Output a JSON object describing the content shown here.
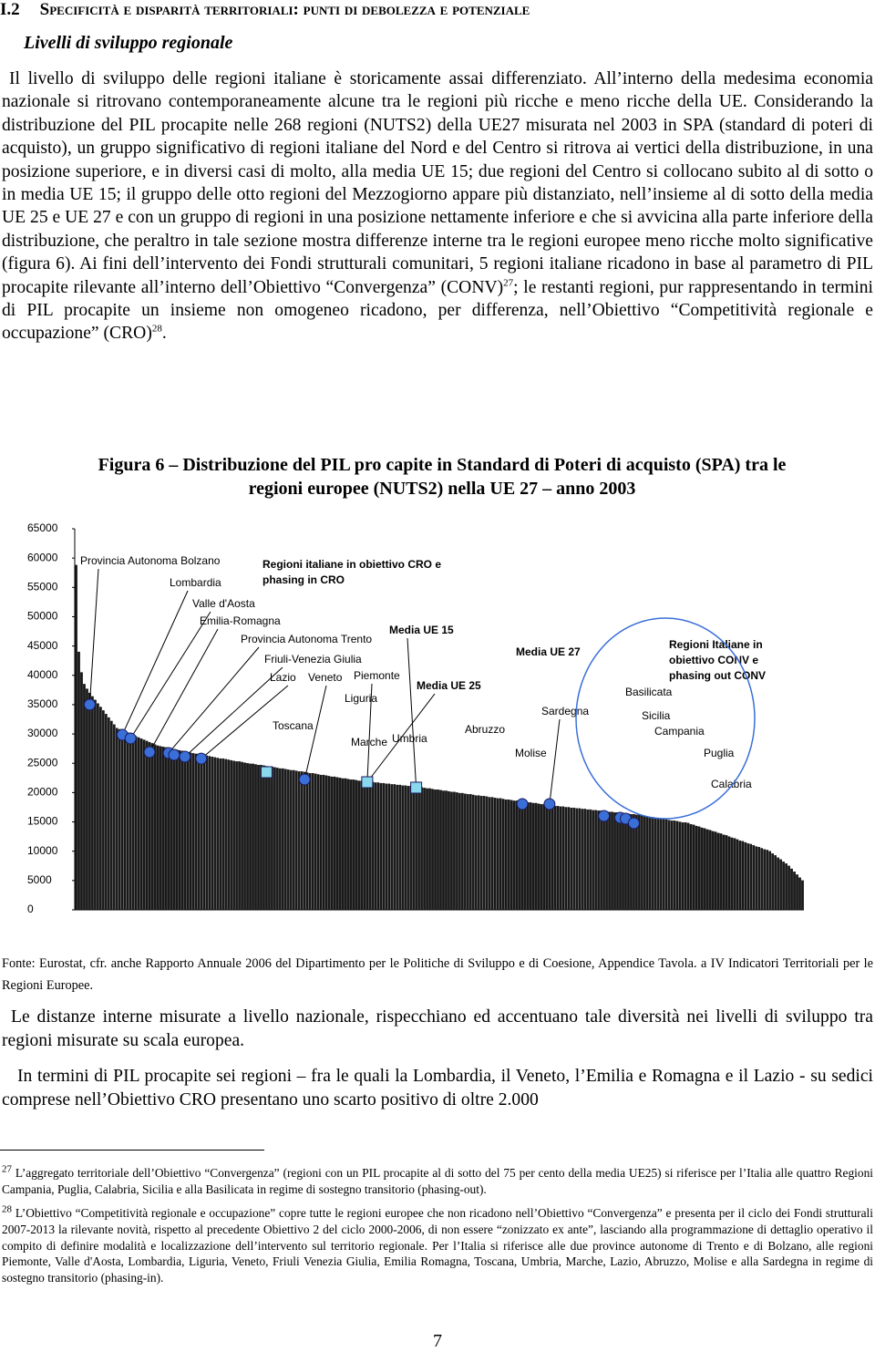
{
  "header": {
    "number": "I.2",
    "title": "Specificità e disparità territoriali: punti di debolezza e potenziale"
  },
  "subheading": "Livelli di sviluppo regionale",
  "paragraphs": [
    {
      "parts": [
        "Il livello di sviluppo delle regioni italiane è storicamente assai differenziato. All’interno della medesima economia nazionale si ritrovano contemporaneamente alcune tra le regioni più ricche e meno ricche della UE. Considerando la distribuzione del PIL procapite nelle 268 regioni (NUTS2) della UE27 misurata nel 2003 in SPA (standard di poteri di acquisto), un gruppo significativo di regioni italiane del Nord e del Centro si ritrova ai vertici della distribuzione, in una posizione superiore, e in diversi casi di molto, alla media UE 15; due regioni del Centro si collocano subito al di sotto o in media UE 15; il gruppo delle otto regioni del Mezzogiorno appare più distanziato, nell’insieme al di sotto della media UE 25 e UE 27 e con un gruppo di regioni in una posizione nettamente inferiore e che si avvicina alla parte inferiore della distribuzione, che peraltro in tale sezione mostra differenze interne tra le regioni europee meno ricche molto significative (figura 6). Ai fini dell’intervento dei Fondi strutturali comunitari, 5 regioni italiane ricadono in base al parametro di PIL procapite rilevante all’interno dell’Obiettivo “Convergenza” (CONV)",
        "27",
        "; le restanti regioni, pur rappresentando in termini di PIL procapite un insieme non omogeneo ricadono, per differenza, nell’Obiettivo “Competitività regionale e occupazione” (CRO)",
        "28",
        "."
      ]
    },
    {
      "parts": [
        "Le distanze interne misurate a livello nazionale, rispecchiano ed accentuano tale diversità nei livelli di sviluppo tra regioni misurate su scala europea."
      ]
    },
    {
      "parts": [
        "In termini di PIL procapite sei regioni – fra le quali la Lombardia, il Veneto, l’Emilia e Romagna e il Lazio - su sedici comprese nell’Obiettivo CRO presentano uno scarto positivo di oltre 2.000"
      ]
    }
  ],
  "chart_data": {
    "type": "bar",
    "title": "Figura 6 – Distribuzione del PIL pro capite in Standard di Poteri di acquisto (SPA) tra le regioni europee (NUTS2) nella UE 27 – anno 2003",
    "color": "#1a1a1a",
    "ylim": [
      0,
      65000
    ],
    "yticks": [
      0,
      5000,
      10000,
      15000,
      20000,
      25000,
      30000,
      35000,
      40000,
      45000,
      50000,
      55000,
      60000,
      65000
    ],
    "values": [
      58800,
      44000,
      40500,
      38500,
      37700,
      37000,
      36400,
      35800,
      35200,
      34600,
      34000,
      33400,
      32800,
      32200,
      31600,
      31000,
      30800,
      30600,
      30400,
      30200,
      30000,
      29800,
      29600,
      29400,
      29200,
      29000,
      28800,
      28600,
      28400,
      28200,
      28000,
      27900,
      27800,
      27700,
      27600,
      27500,
      27400,
      27300,
      27200,
      27100,
      27000,
      26900,
      26800,
      26700,
      26600,
      26600,
      26500,
      26400,
      26300,
      26200,
      26100,
      26000,
      25900,
      25800,
      25800,
      25700,
      25600,
      25500,
      25400,
      25300,
      25300,
      25200,
      25100,
      25000,
      24900,
      24900,
      24800,
      24700,
      24700,
      24600,
      24500,
      24400,
      24400,
      24300,
      24200,
      24100,
      24100,
      24000,
      23900,
      23800,
      23800,
      23700,
      23600,
      23600,
      23500,
      23400,
      23300,
      23300,
      23200,
      23100,
      23000,
      23000,
      22900,
      22800,
      22700,
      22700,
      22600,
      22500,
      22400,
      22400,
      22300,
      22200,
      22200,
      22100,
      22000,
      22000,
      21900,
      21900,
      21800,
      21800,
      21700,
      21700,
      21600,
      21600,
      21500,
      21500,
      21400,
      21400,
      21300,
      21300,
      21200,
      21200,
      21100,
      21100,
      21000,
      21000,
      20900,
      20900,
      20800,
      20700,
      20700,
      20600,
      20500,
      20500,
      20400,
      20300,
      20300,
      20200,
      20100,
      20100,
      20000,
      19900,
      19900,
      19800,
      19700,
      19700,
      19600,
      19500,
      19500,
      19400,
      19400,
      19300,
      19200,
      19200,
      19100,
      19000,
      19000,
      18900,
      18800,
      18800,
      18700,
      18600,
      18600,
      18500,
      18500,
      18400,
      18300,
      18300,
      18200,
      18200,
      18100,
      18000,
      18000,
      17900,
      17900,
      17800,
      17700,
      17700,
      17600,
      17600,
      17500,
      17500,
      17400,
      17400,
      17300,
      17300,
      17200,
      17200,
      17100,
      17100,
      17000,
      17000,
      16900,
      16900,
      16800,
      16800,
      16700,
      16700,
      16600,
      16600,
      16500,
      16500,
      16400,
      16400,
      16300,
      16300,
      16200,
      16200,
      16100,
      16000,
      15900,
      15800,
      15800,
      15700,
      15600,
      15500,
      15500,
      15400,
      15300,
      15200,
      15200,
      15100,
      15000,
      14900,
      14900,
      14800,
      14600,
      14500,
      14300,
      14200,
      14000,
      13900,
      13700,
      13600,
      13400,
      13300,
      13100,
      13000,
      12800,
      12700,
      12500,
      12300,
      12200,
      12000,
      11800,
      11700,
      11500,
      11300,
      11200,
      11000,
      10800,
      10700,
      10500,
      10300,
      10200,
      10000,
      9600,
      9300,
      8900,
      8600,
      8200,
      7900,
      7500,
      7000,
      6500,
      6000,
      5500,
      5000
    ],
    "markers": [
      {
        "x": 5,
        "value": 35000,
        "shape": "circle",
        "color": "#3a6fd8"
      },
      {
        "x": 17,
        "value": 29860,
        "shape": "circle",
        "color": "#3a6fd8"
      },
      {
        "x": 20,
        "value": 29230,
        "shape": "circle",
        "color": "#3a6fd8"
      },
      {
        "x": 27,
        "value": 26900,
        "shape": "circle",
        "color": "#3a6fd8"
      },
      {
        "x": 34,
        "value": 26750,
        "shape": "circle",
        "color": "#3a6fd8"
      },
      {
        "x": 36,
        "value": 26440,
        "shape": "circle",
        "color": "#3a6fd8"
      },
      {
        "x": 40,
        "value": 26120,
        "shape": "circle",
        "color": "#3a6fd8"
      },
      {
        "x": 46,
        "value": 25800,
        "shape": "circle",
        "color": "#3a6fd8"
      },
      {
        "x": 70,
        "value": 23480,
        "shape": "square",
        "color": "#8ad8ee"
      },
      {
        "x": 84,
        "value": 22240,
        "shape": "circle",
        "color": "#3a6fd8"
      },
      {
        "x": 107,
        "value": 21770,
        "shape": "square",
        "color": "#8ad8ee"
      },
      {
        "x": 125,
        "value": 20840,
        "shape": "square",
        "color": "#8ad8ee"
      },
      {
        "x": 164,
        "value": 18040,
        "shape": "circle",
        "color": "#3a6fd8"
      },
      {
        "x": 174,
        "value": 18040,
        "shape": "circle",
        "color": "#3a6fd8"
      },
      {
        "x": 194,
        "value": 16020,
        "shape": "circle",
        "color": "#3a6fd8"
      },
      {
        "x": 200,
        "value": 15700,
        "shape": "circle",
        "color": "#3a6fd8"
      },
      {
        "x": 202,
        "value": 15550,
        "shape": "circle",
        "color": "#3a6fd8"
      },
      {
        "x": 205,
        "value": 14770,
        "shape": "circle",
        "color": "#3a6fd8"
      }
    ],
    "annotations": [
      "Provincia Autonoma Bolzano",
      "Lombardia",
      "Valle d'Aosta",
      "Emilia-Romagna",
      "Provincia Autonoma Trento",
      "Friuli-Venezia Giulia",
      "Lazio",
      "Veneto",
      "Piemonte",
      "Liguria",
      "Toscana",
      "Marche",
      "Umbria",
      "Abruzzo",
      "Molise",
      "Sardegna",
      "Basilicata",
      "Sicilia",
      "Campania",
      "Puglia",
      "Calabria",
      "Media UE 15",
      "Media UE 27",
      "Media UE 25"
    ],
    "boxes": [
      [
        "Regioni italiane in obiettivo CRO e",
        "phasing in CRO"
      ],
      [
        "Regioni Italiane in",
        "obiettivo CONV e",
        "phasing out CONV"
      ]
    ]
  },
  "source": "Fonte: Eurostat, cfr. anche Rapporto Annuale 2006 del Dipartimento per le Politiche di Sviluppo e di Coesione, Appendice Tavola. a IV Indicatori Territoriali per le Regioni Europee.",
  "footnotes": [
    {
      "number": "27",
      "text": "L’aggregato territoriale dell’Obiettivo “Convergenza” (regioni con un PIL procapite al di sotto del 75 per cento della media UE25) si riferisce per l’Italia alle quattro Regioni Campania, Puglia, Calabria, Sicilia e alla Basilicata in regime di sostegno transitorio (phasing-out)."
    },
    {
      "number": "28",
      "text": "L’Obiettivo “Competitività regionale e occupazione” copre tutte le regioni europee che non ricadono nell’Obiettivo “Convergenza” e presenta per il ciclo dei Fondi strutturali 2007-2013 la rilevante novità, rispetto al precedente Obiettivo 2 del ciclo 2000-2006, di non essere “zonizzato ex ante”, lasciando alla programmazione di dettaglio operativo il compito di definire modalità e localizzazione dell’intervento sul territorio regionale. Per l’Italia si riferisce alle due province autonome di Trento e di Bolzano, alle regioni Piemonte, Valle d'Aosta, Lombardia, Liguria, Veneto, Friuli Venezia Giulia, Emilia Romagna, Toscana, Umbria, Marche, Lazio, Abruzzo, Molise e alla Sardegna in regime di sostegno transitorio (phasing-in)."
    }
  ],
  "page_number": "7"
}
